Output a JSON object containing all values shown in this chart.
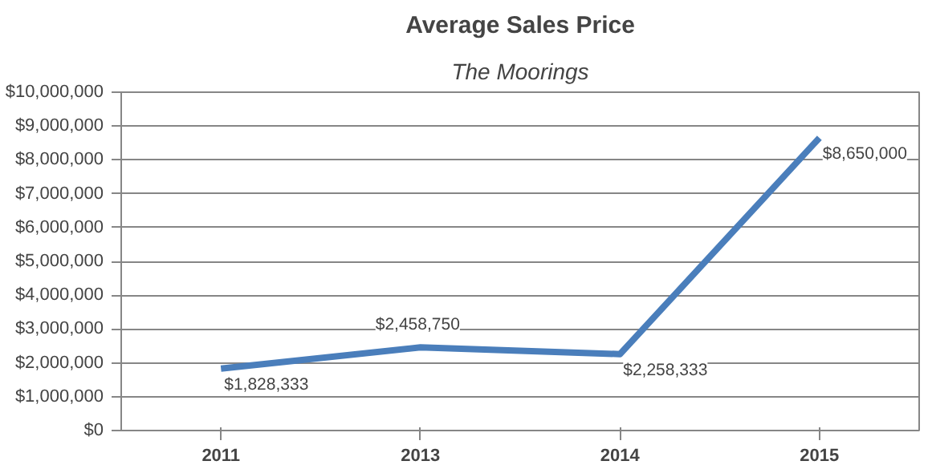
{
  "chart_data": {
    "type": "line",
    "title": "Average Sales Price",
    "subtitle": "The Moorings",
    "categories": [
      "2011",
      "2013",
      "2014",
      "2015"
    ],
    "series": [
      {
        "color": "#4a7ebb",
        "values": [
          1828333,
          2458750,
          2258333,
          8650000
        ]
      }
    ],
    "value_labels": [
      "$1,828,333",
      "$2,458,750",
      "$2,258,333",
      "$8,650,000"
    ],
    "ylim": [
      0,
      10000000
    ],
    "yticks": [
      {
        "value": 0,
        "label": "$0"
      },
      {
        "value": 1000000,
        "label": "$1,000,000"
      },
      {
        "value": 2000000,
        "label": "$2,000,000"
      },
      {
        "value": 3000000,
        "label": "$3,000,000"
      },
      {
        "value": 4000000,
        "label": "$4,000,000"
      },
      {
        "value": 5000000,
        "label": "$5,000,000"
      },
      {
        "value": 6000000,
        "label": "$6,000,000"
      },
      {
        "value": 7000000,
        "label": "$7,000,000"
      },
      {
        "value": 8000000,
        "label": "$8,000,000"
      },
      {
        "value": 9000000,
        "label": "$9,000,000"
      },
      {
        "value": 10000000,
        "label": "$10,000,000"
      }
    ],
    "grid": "y",
    "marker": "none",
    "line_style": "solid"
  }
}
